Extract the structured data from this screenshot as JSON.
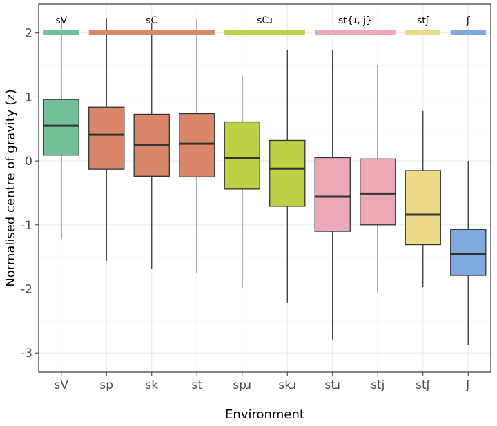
{
  "chart_data": {
    "type": "boxplot",
    "xlabel": "Environment",
    "ylabel": "Normalised centre of gravity (z)",
    "ylim": [
      -3.3,
      2.45
    ],
    "yticks": [
      -3,
      -2,
      -1,
      0,
      1,
      2
    ],
    "grid": true,
    "categories": [
      "sV",
      "sp",
      "sk",
      "st",
      "spɹ",
      "skɹ",
      "stɹ",
      "stj",
      "stʃ",
      "ʃ"
    ],
    "boxes": [
      {
        "category": "sV",
        "min": -1.22,
        "q1": 0.09,
        "median": 0.55,
        "q3": 0.96,
        "max": 2.26,
        "color": "#72bf9a"
      },
      {
        "category": "sp",
        "min": -1.56,
        "q1": -0.13,
        "median": 0.41,
        "q3": 0.84,
        "max": 2.23,
        "color": "#d9876a"
      },
      {
        "category": "sk",
        "min": -1.68,
        "q1": -0.24,
        "median": 0.25,
        "q3": 0.73,
        "max": 2.16,
        "color": "#d9876a"
      },
      {
        "category": "st",
        "min": -1.75,
        "q1": -0.25,
        "median": 0.27,
        "q3": 0.74,
        "max": 2.22,
        "color": "#d9876a"
      },
      {
        "category": "spɹ",
        "min": -1.98,
        "q1": -0.44,
        "median": 0.04,
        "q3": 0.61,
        "max": 1.33,
        "color": "#bfcf46"
      },
      {
        "category": "skɹ",
        "min": -2.22,
        "q1": -0.71,
        "median": -0.12,
        "q3": 0.32,
        "max": 1.73,
        "color": "#bfcf46"
      },
      {
        "category": "stɹ",
        "min": -2.79,
        "q1": -1.1,
        "median": -0.56,
        "q3": 0.05,
        "max": 1.74,
        "color": "#eba9b7"
      },
      {
        "category": "stj",
        "min": -2.07,
        "q1": -1.0,
        "median": -0.51,
        "q3": 0.03,
        "max": 1.5,
        "color": "#eba9b7"
      },
      {
        "category": "stʃ",
        "min": -1.97,
        "q1": -1.31,
        "median": -0.84,
        "q3": -0.15,
        "max": 0.78,
        "color": "#ecd98a"
      },
      {
        "category": "ʃ",
        "min": -2.87,
        "q1": -1.79,
        "median": -1.46,
        "q3": -1.07,
        "max": 0.0,
        "color": "#80a9df"
      }
    ],
    "groups": [
      {
        "label": "sV",
        "from": 0,
        "to": 0,
        "color": "#72bf9a"
      },
      {
        "label": "sC",
        "from": 1,
        "to": 3,
        "color": "#d9876a"
      },
      {
        "label": "sCɹ",
        "from": 4,
        "to": 5,
        "color": "#bfcf46"
      },
      {
        "label": "st{ɹ, j}",
        "from": 6,
        "to": 7,
        "color": "#eba9b7"
      },
      {
        "label": "stʃ",
        "from": 8,
        "to": 8,
        "color": "#ecd98a"
      },
      {
        "label": "ʃ",
        "from": 9,
        "to": 9,
        "color": "#80a9df"
      }
    ]
  }
}
